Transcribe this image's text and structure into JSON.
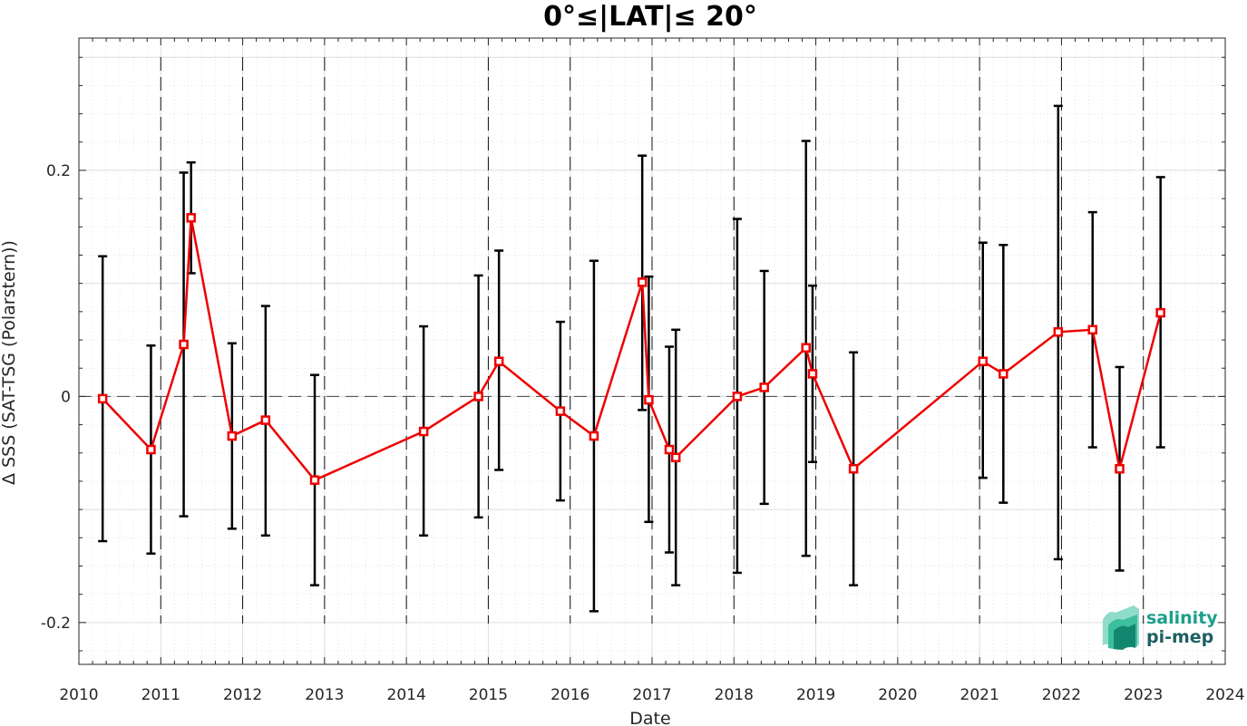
{
  "chart_data": {
    "type": "line",
    "title": "0°≤|LAT|≤ 20°",
    "xlabel": "Date",
    "ylabel": "Δ SSS (SAT-TSG (Polarstern))",
    "xlim": [
      2010,
      2024
    ],
    "ylim": [
      -0.237,
      0.317
    ],
    "x_ticks": [
      2010,
      2011,
      2012,
      2013,
      2014,
      2015,
      2016,
      2017,
      2018,
      2019,
      2020,
      2021,
      2022,
      2023,
      2024
    ],
    "x_tick_labels": [
      "2010",
      "2011",
      "2012",
      "2013",
      "2014",
      "2015",
      "2016",
      "2017",
      "2018",
      "2019",
      "2020",
      "2021",
      "2022",
      "2023",
      "2024"
    ],
    "y_ticks": [
      -0.2,
      0,
      0.2
    ],
    "y_tick_labels": [
      "-0.2",
      "0",
      "0.2"
    ],
    "year_boundary_lines": [
      2011,
      2012,
      2013,
      2014,
      2015,
      2016,
      2017,
      2018,
      2019,
      2020,
      2021,
      2022,
      2023
    ],
    "zero_reference_line": 0,
    "grid": true,
    "colors": {
      "series": "#ee0000",
      "error_bars": "#000000",
      "logo": "#1aa08a"
    },
    "series": [
      {
        "x": [
          2010.29,
          2010.88,
          2011.28,
          2011.37,
          2011.87,
          2012.28,
          2012.88,
          2014.21,
          2014.88,
          2015.13,
          2015.88,
          2016.29,
          2016.88,
          2016.96,
          2017.21,
          2017.29,
          2018.04,
          2018.37,
          2018.88,
          2018.96,
          2019.46,
          2021.04,
          2021.29,
          2021.96,
          2022.38,
          2022.71,
          2023.21
        ],
        "y": [
          -0.002,
          -0.047,
          0.046,
          0.158,
          -0.035,
          -0.021,
          -0.074,
          -0.031,
          0.0,
          0.031,
          -0.013,
          -0.035,
          0.101,
          -0.003,
          -0.047,
          -0.054,
          0.0,
          0.008,
          0.043,
          0.02,
          -0.064,
          0.031,
          0.02,
          0.057,
          0.059,
          -0.064,
          0.074
        ],
        "y_lower": [
          -0.128,
          -0.139,
          -0.106,
          0.109,
          -0.117,
          -0.123,
          -0.167,
          -0.123,
          -0.107,
          -0.065,
          -0.092,
          -0.19,
          -0.012,
          -0.111,
          -0.138,
          -0.167,
          -0.156,
          -0.095,
          -0.141,
          -0.058,
          -0.167,
          -0.072,
          -0.094,
          -0.144,
          -0.045,
          -0.154,
          -0.045
        ],
        "y_upper": [
          0.124,
          0.045,
          0.198,
          0.207,
          0.047,
          0.08,
          0.019,
          0.062,
          0.107,
          0.129,
          0.066,
          0.12,
          0.213,
          0.106,
          0.044,
          0.059,
          0.157,
          0.111,
          0.226,
          0.098,
          0.039,
          0.136,
          0.134,
          0.257,
          0.163,
          0.026,
          0.194
        ]
      }
    ]
  },
  "logo": {
    "line1": "salinity",
    "line2": "pi-mep"
  }
}
